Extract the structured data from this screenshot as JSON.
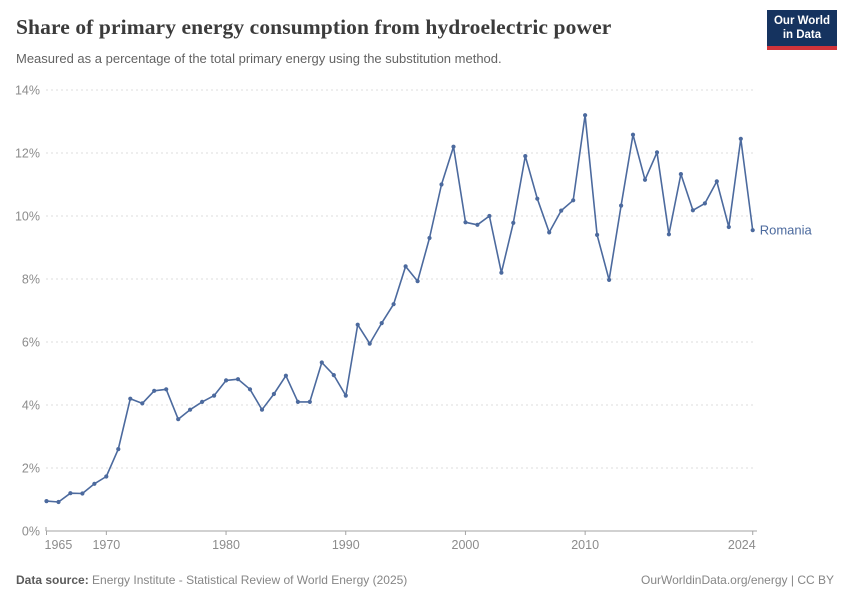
{
  "header": {
    "title": "Share of primary energy consumption from hydroelectric power",
    "subtitle": "Measured as a percentage of the total primary energy using the substitution method.",
    "logo": {
      "line1": "Our World",
      "line2": "in Data",
      "bg_color": "#15335f",
      "accent_color": "#d0343a"
    }
  },
  "chart_data": {
    "type": "line",
    "title": "Share of primary energy consumption from hydroelectric power",
    "xlabel": "",
    "ylabel": "",
    "unit": "%",
    "ylim": [
      0,
      14
    ],
    "yticks": [
      0,
      2,
      4,
      6,
      8,
      10,
      12,
      14
    ],
    "ytick_suffix": "%",
    "xticks": [
      1965,
      1970,
      1980,
      1990,
      2000,
      2010,
      2024
    ],
    "grid": true,
    "legend_position": "end-of-line",
    "x": [
      1965,
      1966,
      1967,
      1968,
      1969,
      1970,
      1971,
      1972,
      1973,
      1974,
      1975,
      1976,
      1977,
      1978,
      1979,
      1980,
      1981,
      1982,
      1983,
      1984,
      1985,
      1986,
      1987,
      1988,
      1989,
      1990,
      1991,
      1992,
      1993,
      1994,
      1995,
      1996,
      1997,
      1998,
      1999,
      2000,
      2001,
      2002,
      2003,
      2004,
      2005,
      2006,
      2007,
      2008,
      2009,
      2010,
      2011,
      2012,
      2013,
      2014,
      2015,
      2016,
      2017,
      2018,
      2019,
      2020,
      2021,
      2022,
      2023,
      2024
    ],
    "series": [
      {
        "name": "Romania",
        "color": "#4C6A9E",
        "values": [
          0.95,
          0.92,
          1.2,
          1.19,
          1.5,
          1.73,
          2.6,
          4.2,
          4.05,
          4.45,
          4.5,
          3.55,
          3.85,
          4.1,
          4.3,
          4.78,
          4.82,
          4.5,
          3.85,
          4.35,
          4.93,
          4.1,
          4.1,
          5.35,
          4.95,
          4.3,
          6.55,
          5.95,
          6.6,
          7.2,
          8.4,
          7.93,
          9.3,
          11.0,
          12.2,
          9.8,
          9.72,
          10.0,
          8.2,
          9.78,
          11.9,
          10.55,
          9.48,
          10.17,
          10.5,
          13.2,
          9.4,
          7.97,
          10.33,
          12.58,
          11.15,
          12.02,
          9.42,
          11.33,
          10.18,
          10.4,
          11.1,
          9.65,
          12.45,
          9.55
        ]
      }
    ],
    "colors": {
      "line": "#4C6A9E",
      "gridline": "#dcdcdc",
      "axis": "#a3a3a3",
      "tick_label": "#8c8c8c"
    }
  },
  "footer": {
    "datasource_label": "Data source:",
    "datasource_text": " Energy Institute - Statistical Review of World Energy (2025)",
    "credit": "OurWorldinData.org/energy | CC BY"
  }
}
